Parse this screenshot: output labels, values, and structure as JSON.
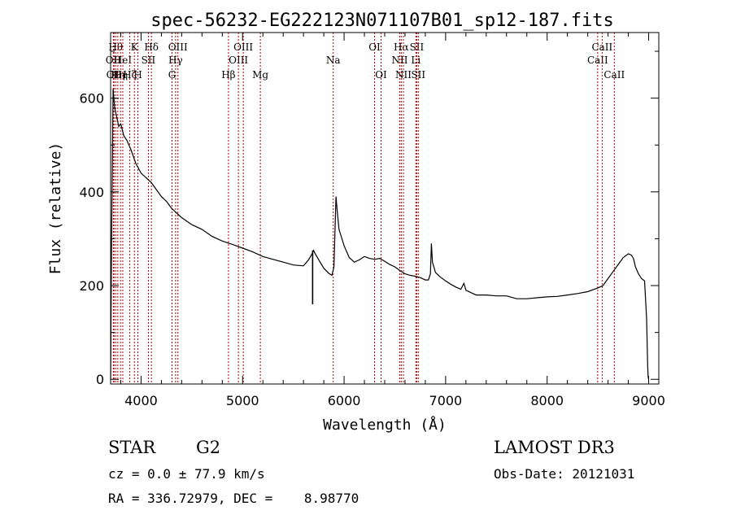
{
  "chart_data": {
    "type": "line",
    "title": "spec-56232-EG222123N071107B01_sp12-187.fits",
    "xlabel": "Wavelength (Å)",
    "ylabel": "Flux (relative)",
    "xlim": [
      3700,
      9100
    ],
    "ylim": [
      -10,
      740
    ],
    "xticks": [
      4000,
      5000,
      6000,
      7000,
      8000,
      9000
    ],
    "xtick_labels": [
      "4000",
      "5000",
      "6000",
      "7000",
      "8000",
      "9000"
    ],
    "yticks": [
      0,
      200,
      400,
      600
    ],
    "ytick_labels": [
      "0",
      "200",
      "400",
      "600"
    ],
    "series": [
      {
        "name": "flux",
        "x": [
          3700,
          3710,
          3725,
          3740,
          3760,
          3780,
          3800,
          3830,
          3860,
          3900,
          3950,
          4000,
          4050,
          4100,
          4150,
          4200,
          4250,
          4300,
          4350,
          4400,
          4500,
          4600,
          4700,
          4800,
          4900,
          5000,
          5100,
          5200,
          5300,
          5400,
          5500,
          5600,
          5650,
          5690,
          5700,
          5710,
          5750,
          5800,
          5850,
          5880,
          5900,
          5920,
          5930,
          5950,
          6000,
          6050,
          6100,
          6150,
          6200,
          6250,
          6300,
          6350,
          6400,
          6450,
          6500,
          6550,
          6600,
          6650,
          6700,
          6750,
          6800,
          6830,
          6850,
          6860,
          6870,
          6900,
          6950,
          7000,
          7050,
          7100,
          7150,
          7180,
          7200,
          7250,
          7300,
          7400,
          7500,
          7600,
          7650,
          7700,
          7800,
          7900,
          8000,
          8100,
          8200,
          8300,
          8400,
          8500,
          8550,
          8600,
          8650,
          8700,
          8750,
          8800,
          8830,
          8850,
          8870,
          8900,
          8930,
          8960,
          8980,
          8990,
          8995,
          9000
        ],
        "y": [
          0,
          300,
          620,
          580,
          560,
          540,
          545,
          520,
          510,
          490,
          460,
          440,
          430,
          420,
          405,
          390,
          380,
          365,
          355,
          345,
          330,
          320,
          305,
          295,
          288,
          280,
          272,
          262,
          256,
          250,
          244,
          242,
          255,
          270,
          275,
          270,
          255,
          237,
          226,
          222,
          240,
          390,
          365,
          320,
          285,
          260,
          250,
          255,
          262,
          258,
          256,
          258,
          252,
          245,
          240,
          232,
          225,
          222,
          220,
          217,
          212,
          212,
          225,
          290,
          250,
          228,
          218,
          210,
          203,
          197,
          192,
          205,
          190,
          185,
          180,
          180,
          178,
          178,
          175,
          172,
          172,
          174,
          176,
          177,
          180,
          183,
          187,
          195,
          200,
          215,
          230,
          245,
          260,
          268,
          265,
          258,
          240,
          225,
          215,
          210,
          130,
          30,
          5,
          0
        ]
      }
    ],
    "lines": [
      {
        "x": 3727,
        "label": "OII",
        "row": 2
      },
      {
        "x": 3734,
        "label": "OII",
        "row": 3
      },
      {
        "x": 3750,
        "label": "Hθ",
        "row": 1
      },
      {
        "x": 3771,
        "label": "Hη",
        "row": 3
      },
      {
        "x": 3798,
        "label": "Hη",
        "row": 3
      },
      {
        "x": 3820,
        "label": "HeI",
        "row": 2
      },
      {
        "x": 3889,
        "label": "Hζ",
        "row": 3
      },
      {
        "x": 3934,
        "label": "K",
        "row": 1
      },
      {
        "x": 3969,
        "label": "H",
        "row": 3
      },
      {
        "x": 4072,
        "label": "SII",
        "row": 2
      },
      {
        "x": 4102,
        "label": "Hδ",
        "row": 1
      },
      {
        "x": 4305,
        "label": "G",
        "row": 3
      },
      {
        "x": 4340,
        "label": "Hγ",
        "row": 2
      },
      {
        "x": 4363,
        "label": "OIII",
        "row": 1
      },
      {
        "x": 4861,
        "label": "Hβ",
        "row": 3
      },
      {
        "x": 4959,
        "label": "OIII",
        "row": 2
      },
      {
        "x": 5007,
        "label": "OIII",
        "row": 1
      },
      {
        "x": 5175,
        "label": "Mg",
        "row": 3
      },
      {
        "x": 5893,
        "label": "Na",
        "row": 2
      },
      {
        "x": 6300,
        "label": "OI",
        "row": 1
      },
      {
        "x": 6364,
        "label": "OI",
        "row": 3
      },
      {
        "x": 6548,
        "label": "NII",
        "row": 2
      },
      {
        "x": 6563,
        "label": "Hα",
        "row": 1
      },
      {
        "x": 6584,
        "label": "NII",
        "row": 3
      },
      {
        "x": 6707,
        "label": "Li",
        "row": 2
      },
      {
        "x": 6716,
        "label": "SII",
        "row": 1
      },
      {
        "x": 6731,
        "label": "SII",
        "row": 3
      },
      {
        "x": 8498,
        "label": "CaII",
        "row": 2
      },
      {
        "x": 8542,
        "label": "CaII",
        "row": 1
      },
      {
        "x": 8662,
        "label": "CaII",
        "row": 3
      }
    ]
  },
  "info": {
    "class_label": "STAR",
    "subclass": "G2",
    "survey": "LAMOST DR3",
    "cz_text": "cz = 0.0 ± 77.9 km/s",
    "obs_date": "Obs-Date: 20121031",
    "radec_text": "RA = 336.72979, DEC =    8.98770"
  },
  "colors": {
    "axis": "#000000",
    "spectrum": "#000000",
    "line_marker": "#b00000"
  }
}
